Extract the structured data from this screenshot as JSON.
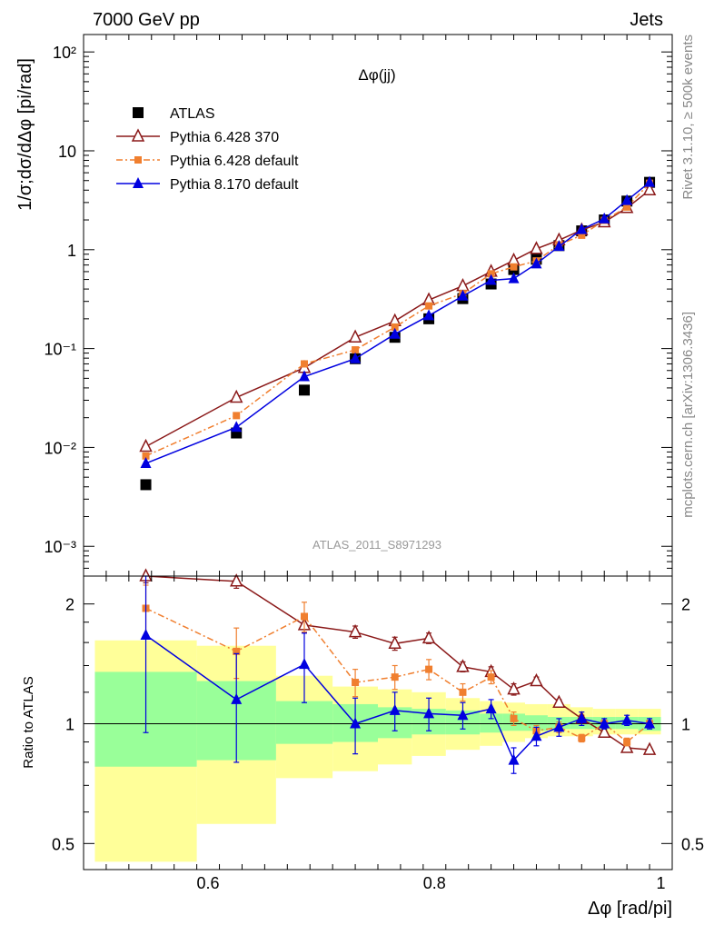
{
  "header": {
    "left": "7000 GeV pp",
    "right": "Jets"
  },
  "side_labels": {
    "rivet": "Rivet 3.1.10, ≥ 500k events",
    "mcplots": "mcplots.cern.ch [arXiv:1306.3436]"
  },
  "watermark": "ATLAS_2011_S8971293",
  "chart_data": [
    {
      "type": "scatter",
      "panel": "main",
      "title": "Δφ(jj)",
      "ylabel": "1/σ;dσ/dΔφ [pi/rad]",
      "xlabel": "Δφ [rad/pi]",
      "xlim": [
        0.49,
        1.01
      ],
      "ylim": [
        0.0005,
        150
      ],
      "yscale": "log",
      "x_ticks": [
        "0.6",
        "0.8",
        "1"
      ],
      "y_ticks": [
        {
          "value": 0.001,
          "label": "10⁻³"
        },
        {
          "value": 0.01,
          "label": "10⁻²"
        },
        {
          "value": 0.1,
          "label": "10⁻¹"
        },
        {
          "value": 1,
          "label": "1"
        },
        {
          "value": 10,
          "label": "10"
        },
        {
          "value": 100,
          "label": "10²"
        }
      ],
      "legend_position": "top-left",
      "x": [
        0.545,
        0.625,
        0.685,
        0.73,
        0.765,
        0.795,
        0.825,
        0.85,
        0.87,
        0.89,
        0.91,
        0.93,
        0.95,
        0.97,
        0.99
      ],
      "series": [
        {
          "name": "ATLAS",
          "style": "data",
          "color": "#000000",
          "values": [
            0.0042,
            0.014,
            0.038,
            0.079,
            0.13,
            0.2,
            0.32,
            0.45,
            0.63,
            0.8,
            1.1,
            1.55,
            2.0,
            3.1,
            4.8
          ]
        },
        {
          "name": "Pythia 6.428 370",
          "style": "open-triangle-solid",
          "color": "#8b1a1a",
          "values": [
            0.0102,
            0.032,
            0.064,
            0.13,
            0.19,
            0.31,
            0.43,
            0.6,
            0.78,
            1.02,
            1.25,
            1.58,
            1.9,
            2.65,
            4.0
          ]
        },
        {
          "name": "Pythia 6.428 default",
          "style": "square-dashdot",
          "color": "#f07f2f",
          "values": [
            0.0082,
            0.021,
            0.07,
            0.097,
            0.165,
            0.27,
            0.36,
            0.57,
            0.67,
            0.77,
            1.12,
            1.4,
            1.98,
            2.7,
            4.7
          ]
        },
        {
          "name": "Pythia 8.170 default",
          "style": "triangle-solid",
          "color": "#0000e0",
          "values": [
            0.0069,
            0.016,
            0.052,
            0.079,
            0.14,
            0.215,
            0.34,
            0.49,
            0.51,
            0.72,
            1.08,
            1.6,
            2.05,
            3.15,
            4.8
          ]
        }
      ]
    },
    {
      "type": "scatter",
      "panel": "ratio",
      "ylabel": "Ratio to ATLAS",
      "xlabel": "Δφ [rad/pi]",
      "xlim": [
        0.49,
        1.01
      ],
      "ylim": [
        0.43,
        2.35
      ],
      "yscale": "log",
      "y_ticks": [
        {
          "value": 0.5,
          "label": "0.5"
        },
        {
          "value": 1,
          "label": "1"
        },
        {
          "value": 2,
          "label": "2"
        }
      ],
      "band_edges": [
        0.5,
        0.59,
        0.66,
        0.71,
        0.75,
        0.78,
        0.81,
        0.84,
        0.86,
        0.88,
        0.9,
        0.92,
        0.94,
        0.96,
        0.98,
        1.0
      ],
      "band_inner": [
        [
          0.78,
          1.35
        ],
        [
          0.81,
          1.28
        ],
        [
          0.89,
          1.14
        ],
        [
          0.9,
          1.12
        ],
        [
          0.92,
          1.1
        ],
        [
          0.94,
          1.09
        ],
        [
          0.94,
          1.08
        ],
        [
          0.95,
          1.06
        ],
        [
          0.96,
          1.06
        ],
        [
          0.96,
          1.05
        ],
        [
          0.97,
          1.04
        ],
        [
          0.97,
          1.04
        ],
        [
          0.97,
          1.04
        ],
        [
          0.97,
          1.04
        ],
        [
          0.96,
          1.04
        ]
      ],
      "band_outer": [
        [
          0.45,
          1.62
        ],
        [
          0.56,
          1.57
        ],
        [
          0.73,
          1.32
        ],
        [
          0.76,
          1.24
        ],
        [
          0.79,
          1.22
        ],
        [
          0.83,
          1.2
        ],
        [
          0.86,
          1.16
        ],
        [
          0.88,
          1.14
        ],
        [
          0.9,
          1.13
        ],
        [
          0.92,
          1.12
        ],
        [
          0.93,
          1.12
        ],
        [
          0.93,
          1.1
        ],
        [
          0.94,
          1.09
        ],
        [
          0.94,
          1.09
        ],
        [
          0.94,
          1.09
        ]
      ],
      "series": [
        {
          "name": "Pythia 6.428 370",
          "color": "#8b1a1a",
          "values": [
            2.35,
            2.28,
            1.77,
            1.7,
            1.59,
            1.64,
            1.39,
            1.35,
            1.22,
            1.28,
            1.13,
            1.03,
            0.95,
            0.87,
            0.86
          ],
          "err": [
            0.09,
            0.09,
            0.08,
            0.06,
            0.06,
            0.05,
            0.04,
            0.04,
            0.04,
            0.03,
            0.02,
            0.02,
            0.02,
            0.02,
            0.01
          ]
        },
        {
          "name": "Pythia 6.428 default",
          "color": "#f07f2f",
          "values": [
            1.95,
            1.52,
            1.86,
            1.27,
            1.31,
            1.37,
            1.2,
            1.31,
            1.03,
            0.96,
            0.98,
            0.92,
            1.0,
            0.9,
            1.0
          ],
          "err": [
            0.28,
            0.22,
            0.16,
            0.1,
            0.09,
            0.08,
            0.06,
            0.05,
            0.04,
            0.03,
            0.03,
            0.02,
            0.02,
            0.02,
            0.02
          ]
        },
        {
          "name": "Pythia 8.170 default",
          "color": "#0000e0",
          "values": [
            1.67,
            1.15,
            1.41,
            1.0,
            1.08,
            1.06,
            1.05,
            1.09,
            0.81,
            0.93,
            0.98,
            1.03,
            1.0,
            1.02,
            1.0
          ],
          "err": [
            0.72,
            0.35,
            0.28,
            0.16,
            0.12,
            0.1,
            0.08,
            0.06,
            0.06,
            0.05,
            0.05,
            0.04,
            0.03,
            0.03,
            0.03
          ]
        }
      ]
    }
  ]
}
